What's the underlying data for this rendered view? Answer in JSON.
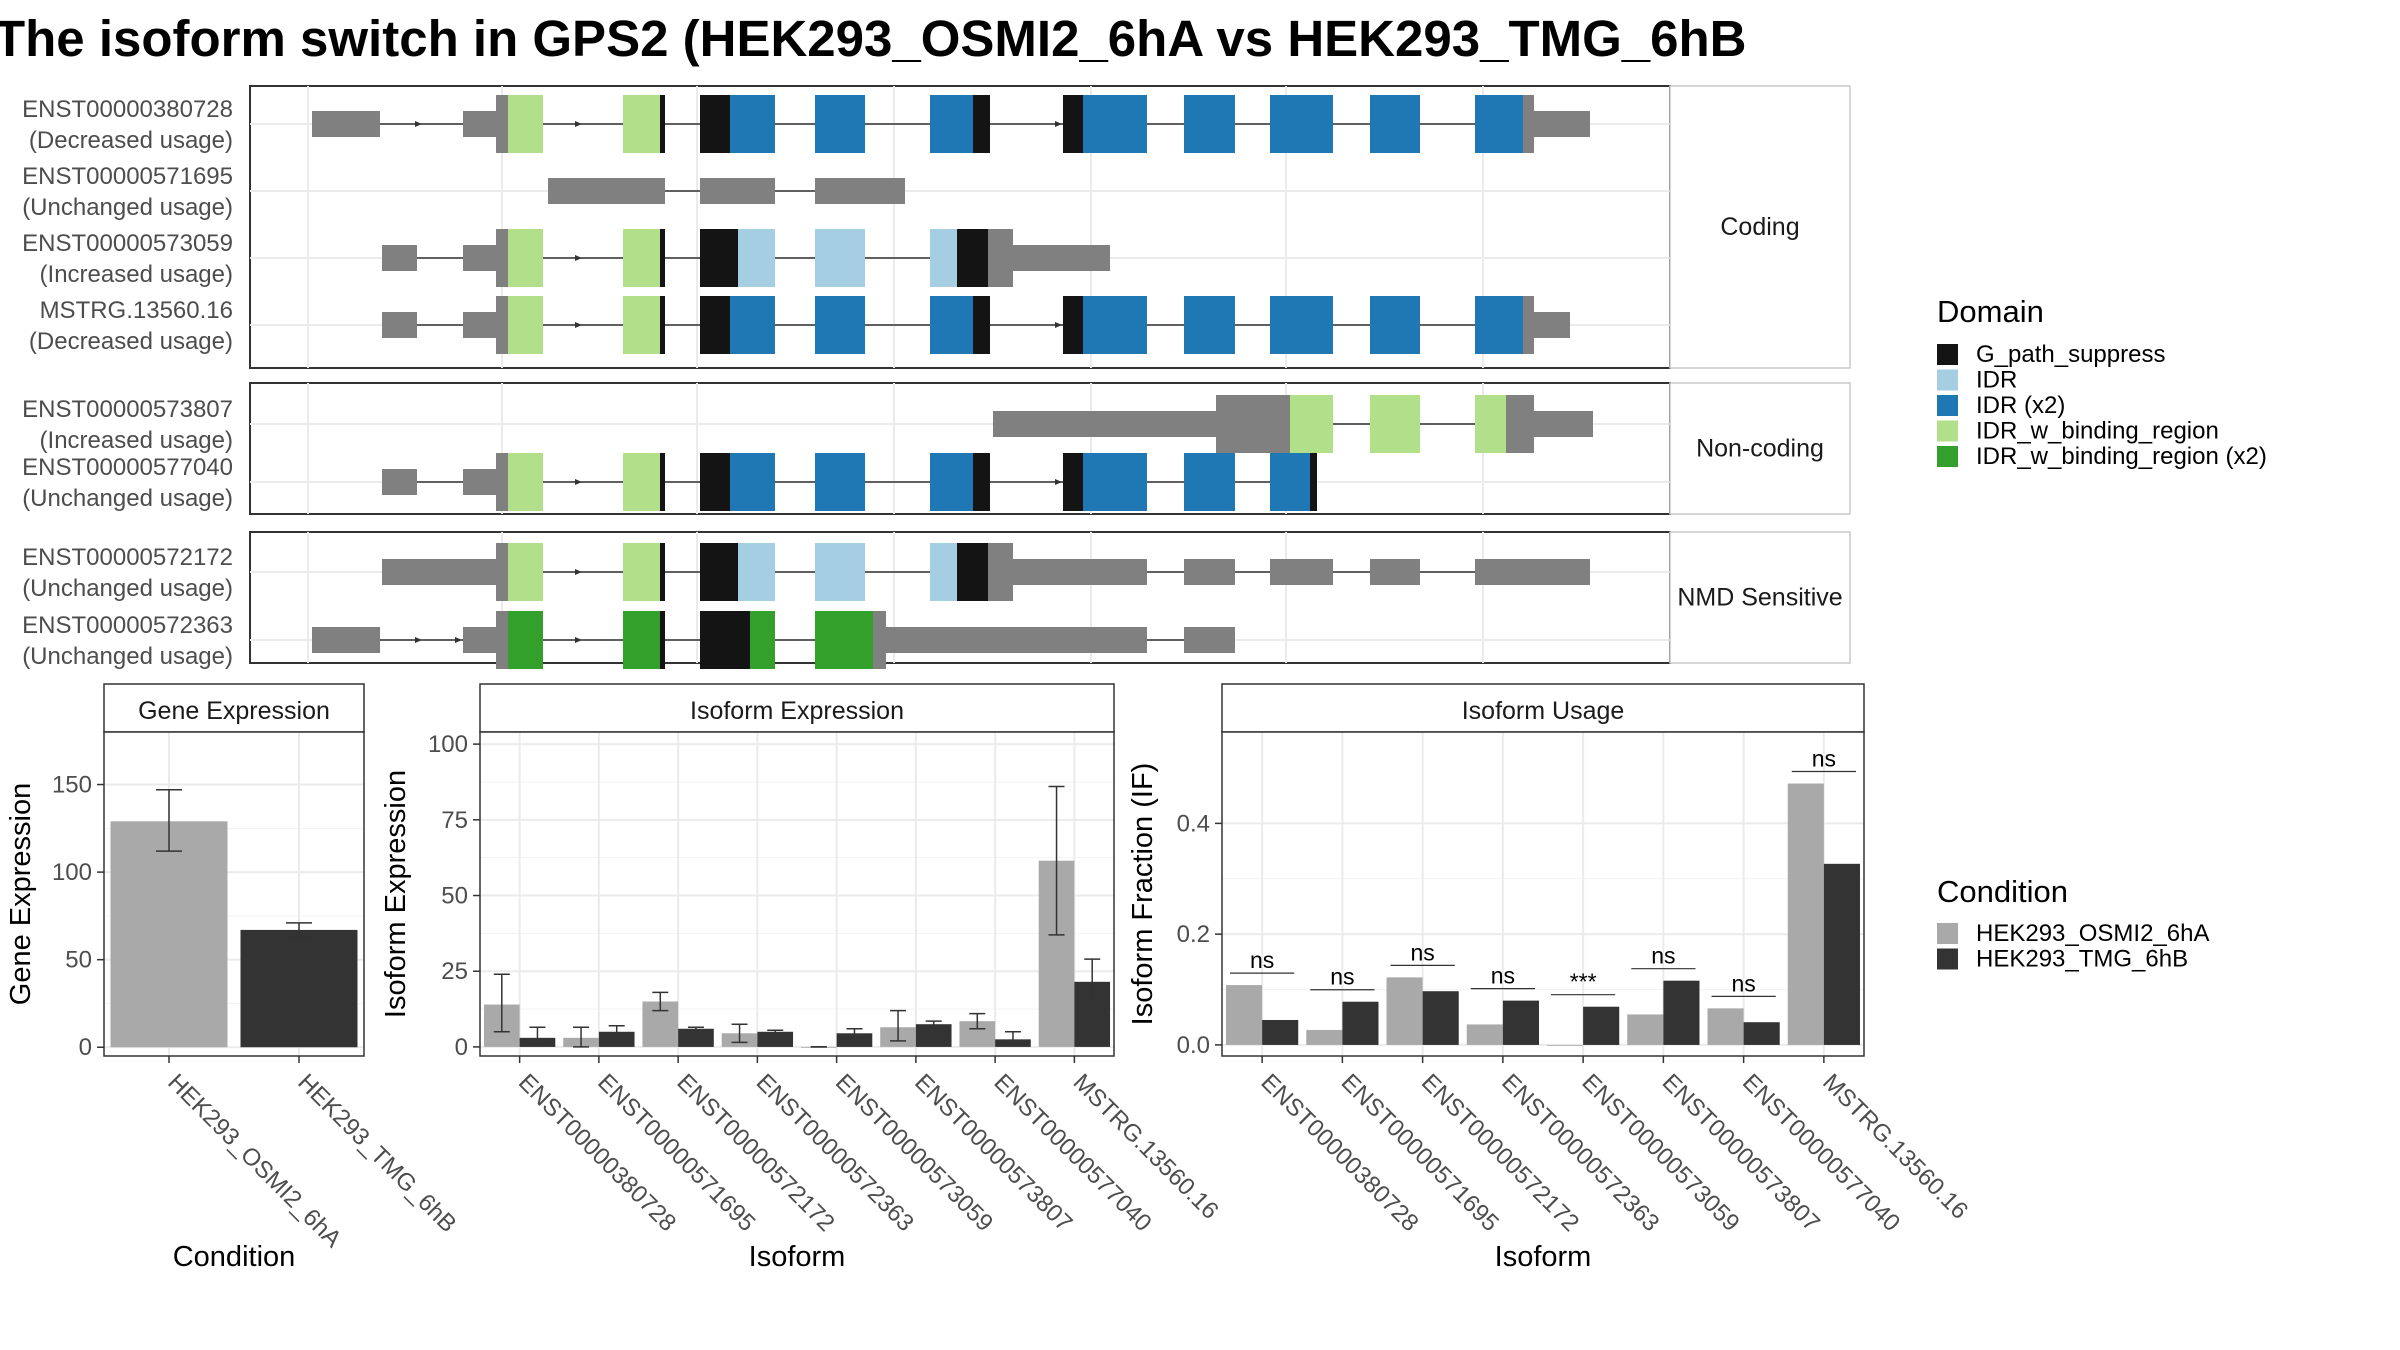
{
  "title": "The isoform switch in GPS2 (HEK293_OSMI2_6hA vs HEK293_TMG_6hB",
  "domain_legend": {
    "title": "Domain",
    "items": [
      {
        "label": "G_path_suppress",
        "color": "#141414"
      },
      {
        "label": "IDR",
        "color": "#a6cee3"
      },
      {
        "label": "IDR (x2)",
        "color": "#1f78b4"
      },
      {
        "label": "IDR_w_binding_region",
        "color": "#b2df8a"
      },
      {
        "label": "IDR_w_binding_region (x2)",
        "color": "#33a02c"
      }
    ]
  },
  "condition_legend": {
    "title": "Condition",
    "items": [
      {
        "label": "HEK293_OSMI2_6hA",
        "color": "#a9a9a9"
      },
      {
        "label": "HEK293_TMG_6hB",
        "color": "#333333"
      }
    ]
  },
  "structure": {
    "groups": [
      {
        "strip": "Coding",
        "transcripts": [
          {
            "id": "ENST00000380728",
            "usage": "(Decreased usage)"
          },
          {
            "id": "ENST00000571695",
            "usage": "(Unchanged usage)"
          },
          {
            "id": "ENST00000573059",
            "usage": "(Increased usage)"
          },
          {
            "id": "MSTRG.13560.16",
            "usage": "(Decreased usage)"
          }
        ]
      },
      {
        "strip": "Non-coding",
        "transcripts": [
          {
            "id": "ENST00000573807",
            "usage": "(Increased usage)"
          },
          {
            "id": "ENST00000577040",
            "usage": "(Unchanged usage)"
          }
        ]
      },
      {
        "strip": "NMD Sensitive",
        "transcripts": [
          {
            "id": "ENST00000572172",
            "usage": "(Unchanged usage)"
          },
          {
            "id": "ENST00000572363",
            "usage": "(Unchanged usage)"
          }
        ]
      }
    ]
  },
  "chart_data": [
    {
      "type": "bar",
      "title": "Gene Expression",
      "xlabel": "Condition",
      "ylabel": "Gene Expression",
      "categories": [
        "HEK293_OSMI2_6hA",
        "HEK293_TMG_6hB"
      ],
      "values": [
        129,
        67
      ],
      "errors_low": [
        112,
        63
      ],
      "errors_high": [
        147,
        71
      ],
      "ylim": [
        -5,
        180
      ],
      "yticks": [
        0,
        50,
        100,
        150
      ],
      "grid": true
    },
    {
      "type": "bar",
      "title": "Isoform Expression",
      "xlabel": "Isoform",
      "ylabel": "Isoform Expression",
      "categories": [
        "ENST00000380728",
        "ENST00000571695",
        "ENST00000572172",
        "ENST00000572363",
        "ENST00000573059",
        "ENST00000573807",
        "ENST00000577040",
        "MSTRG.13560.16"
      ],
      "series": [
        {
          "name": "HEK293_OSMI2_6hA",
          "values": [
            14,
            3,
            15,
            4.5,
            0,
            6.5,
            8.5,
            61.5
          ],
          "err_low": [
            5,
            0,
            12,
            1.5,
            0,
            2,
            6,
            37
          ],
          "err_high": [
            24,
            6.5,
            18,
            7.5,
            0,
            12,
            11,
            86
          ]
        },
        {
          "name": "HEK293_TMG_6hB",
          "values": [
            3,
            5,
            6,
            5,
            4.5,
            7.5,
            2.5,
            21.5
          ],
          "err_low": [
            0.5,
            3,
            5.5,
            4.5,
            3,
            6.5,
            0.5,
            15
          ],
          "err_high": [
            6.5,
            7,
            6.5,
            5.5,
            6,
            8.5,
            5,
            29
          ]
        }
      ],
      "ylim": [
        -3,
        104
      ],
      "yticks": [
        0,
        25,
        50,
        75,
        100
      ],
      "grid": true
    },
    {
      "type": "bar",
      "title": "Isoform Usage",
      "xlabel": "Isoform",
      "ylabel": "Isoform Fraction (IF)",
      "categories": [
        "ENST00000380728",
        "ENST00000571695",
        "ENST00000572172",
        "ENST00000572363",
        "ENST00000573059",
        "ENST00000573807",
        "ENST00000577040",
        "MSTRG.13560.16"
      ],
      "series": [
        {
          "name": "HEK293_OSMI2_6hA",
          "values": [
            0.108,
            0.027,
            0.122,
            0.037,
            0.0,
            0.055,
            0.066,
            0.472
          ]
        },
        {
          "name": "HEK293_TMG_6hB",
          "values": [
            0.045,
            0.078,
            0.097,
            0.08,
            0.069,
            0.116,
            0.041,
            0.327
          ]
        }
      ],
      "significance": [
        "ns",
        "ns",
        "ns",
        "ns",
        "***",
        "ns",
        "ns",
        "ns"
      ],
      "ylim": [
        -0.02,
        0.565
      ],
      "yticks": [
        0.0,
        0.2,
        0.4
      ],
      "yticklabels": [
        "0.0",
        "0.2",
        "0.4"
      ],
      "grid": true
    }
  ]
}
